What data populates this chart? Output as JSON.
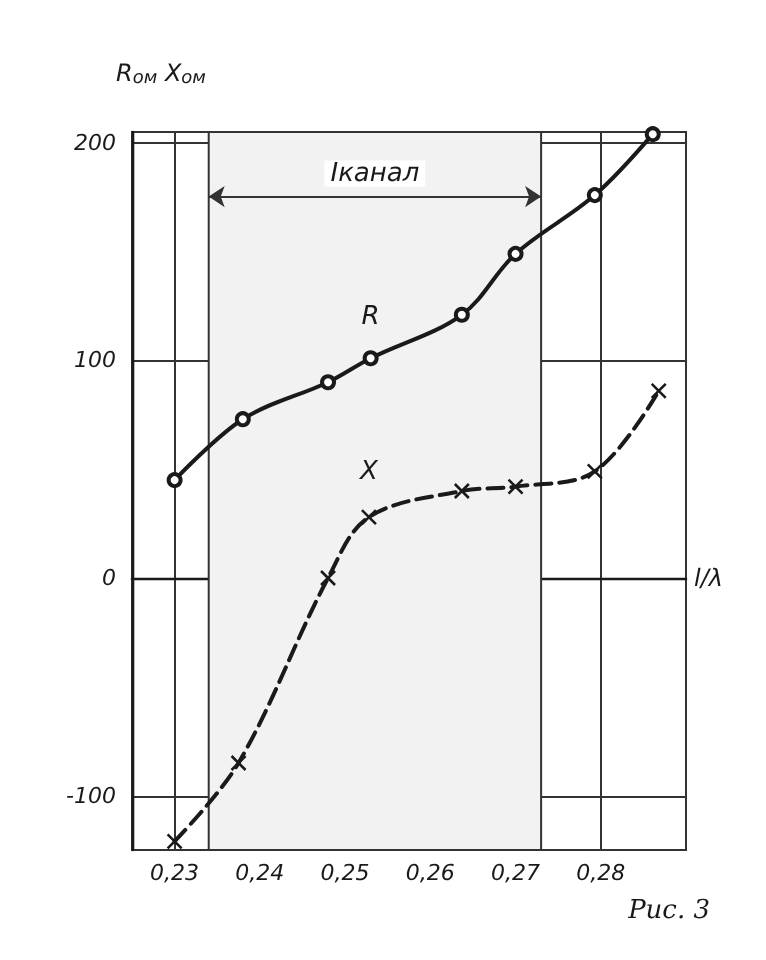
{
  "chart_data": {
    "type": "line",
    "xlabel": "l/λ",
    "ylabel": "R$_{ом}$ X$_{ом}$",
    "xlim": [
      0.225,
      0.29
    ],
    "ylim": [
      -125,
      205
    ],
    "xticks": [
      {
        "value": 0.23,
        "label": "0,23"
      },
      {
        "value": 0.24,
        "label": "0,24"
      },
      {
        "value": 0.25,
        "label": "0,25"
      },
      {
        "value": 0.26,
        "label": "0,26"
      },
      {
        "value": 0.27,
        "label": "0,27"
      },
      {
        "value": 0.28,
        "label": "0,28"
      }
    ],
    "yticks": [
      -100,
      0,
      100,
      200
    ],
    "grid": true,
    "series": [
      {
        "name": "R",
        "color": "#1a1a1a",
        "marker": "circle",
        "line_style": "solid",
        "x": [
          0.23,
          0.238,
          0.248,
          0.253,
          0.2637,
          0.27,
          0.2793,
          0.2861
        ],
        "values": [
          45,
          73,
          90,
          101,
          121,
          149,
          176,
          204
        ]
      },
      {
        "name": "X",
        "color": "#1a1a1a",
        "marker": "cross",
        "line_style": "dashed",
        "x": [
          0.23,
          0.2375,
          0.248,
          0.2528,
          0.2637,
          0.27,
          0.2793,
          0.2868
        ],
        "values": [
          -121,
          -85,
          0,
          28,
          40,
          42,
          49,
          86
        ]
      }
    ],
    "bands": [
      {
        "axis": "x",
        "from": 0.234,
        "to": 0.273,
        "label": "Iканал",
        "color": "#f2f2f2"
      }
    ],
    "annotations": [
      "Рис. 3"
    ]
  }
}
